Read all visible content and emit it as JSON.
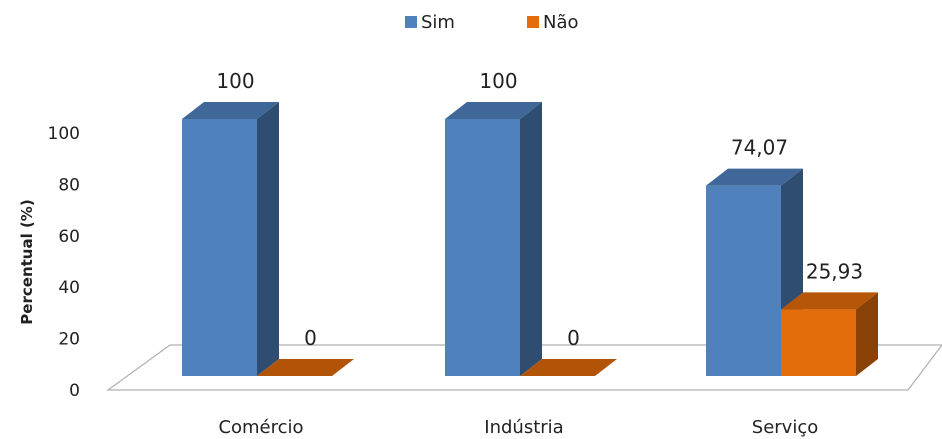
{
  "chart_data": {
    "type": "bar",
    "style": "3d-clustered-column",
    "categories": [
      "Comércio",
      "Indústria",
      "Serviço"
    ],
    "series": [
      {
        "name": "Sim",
        "values": [
          100,
          100,
          74.07
        ],
        "labels": [
          "100",
          "100",
          "74,07"
        ]
      },
      {
        "name": "Não",
        "values": [
          0,
          0,
          25.93
        ],
        "labels": [
          "0",
          "0",
          "25,93"
        ]
      }
    ],
    "ylabel": "Percentual (%)",
    "xlabel": "",
    "ylim": [
      0,
      100
    ],
    "yticks": [
      0,
      20,
      40,
      60,
      80,
      100
    ],
    "ytick_labels": [
      "0",
      "20",
      "40",
      "60",
      "80",
      "100"
    ],
    "legend_position": "top",
    "grid": false
  },
  "colors": {
    "sim": "#4F81BD",
    "nao": "#E46C0A"
  }
}
